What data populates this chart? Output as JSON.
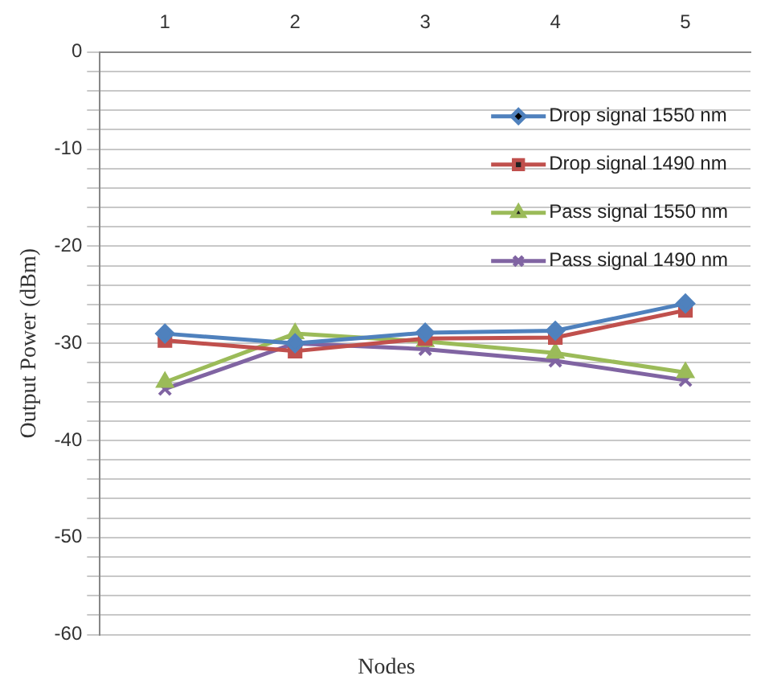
{
  "chart_data": {
    "type": "line",
    "xlabel": "Nodes",
    "ylabel": "Output Power (dBm)",
    "categories": [
      "1",
      "2",
      "3",
      "4",
      "5"
    ],
    "series": [
      {
        "name": "Drop signal 1550 nm",
        "color": "#4f81bd",
        "marker": "diamond",
        "values": [
          -29.0,
          -30.0,
          -28.9,
          -28.7,
          -25.9
        ]
      },
      {
        "name": "Drop signal 1490 nm",
        "color": "#c0504d",
        "marker": "square",
        "values": [
          -29.7,
          -30.8,
          -29.5,
          -29.4,
          -26.6
        ]
      },
      {
        "name": "Pass signal 1550 nm",
        "color": "#9bbb59",
        "marker": "triangle",
        "values": [
          -34.0,
          -29.0,
          -29.8,
          -31.0,
          -33.0
        ]
      },
      {
        "name": "Pass signal 1490 nm",
        "color": "#8064a2",
        "marker": "cross",
        "values": [
          -34.7,
          -30.0,
          -30.6,
          -31.8,
          -33.8
        ]
      }
    ],
    "ylim": [
      -60,
      0
    ],
    "yticks": [
      -60,
      {
        "value": -58,
        "label": null
      },
      {
        "value": -56,
        "label": null
      },
      {
        "value": -54,
        "label": null
      },
      {
        "value": -52,
        "label": null
      },
      -50,
      {
        "value": -48,
        "label": null
      },
      {
        "value": -46,
        "label": null
      },
      {
        "value": -44,
        "label": null
      },
      {
        "value": -42,
        "label": null
      },
      -40,
      {
        "value": -38,
        "label": null
      },
      {
        "value": -36,
        "label": null
      },
      {
        "value": -34,
        "label": null
      },
      {
        "value": -32,
        "label": null
      },
      -30,
      {
        "value": -28,
        "label": null
      },
      {
        "value": -26,
        "label": null
      },
      {
        "value": -24,
        "label": null
      },
      {
        "value": -22,
        "label": null
      },
      -20,
      {
        "value": -18,
        "label": null
      },
      {
        "value": -16,
        "label": null
      },
      {
        "value": -14,
        "label": null
      },
      {
        "value": -12,
        "label": null
      },
      -10,
      {
        "value": -8,
        "label": null
      },
      {
        "value": -6,
        "label": null
      },
      {
        "value": -4,
        "label": null
      },
      {
        "value": -2,
        "label": null
      },
      0
    ],
    "grid": "y",
    "legend": "top right",
    "line_style": "solid"
  }
}
